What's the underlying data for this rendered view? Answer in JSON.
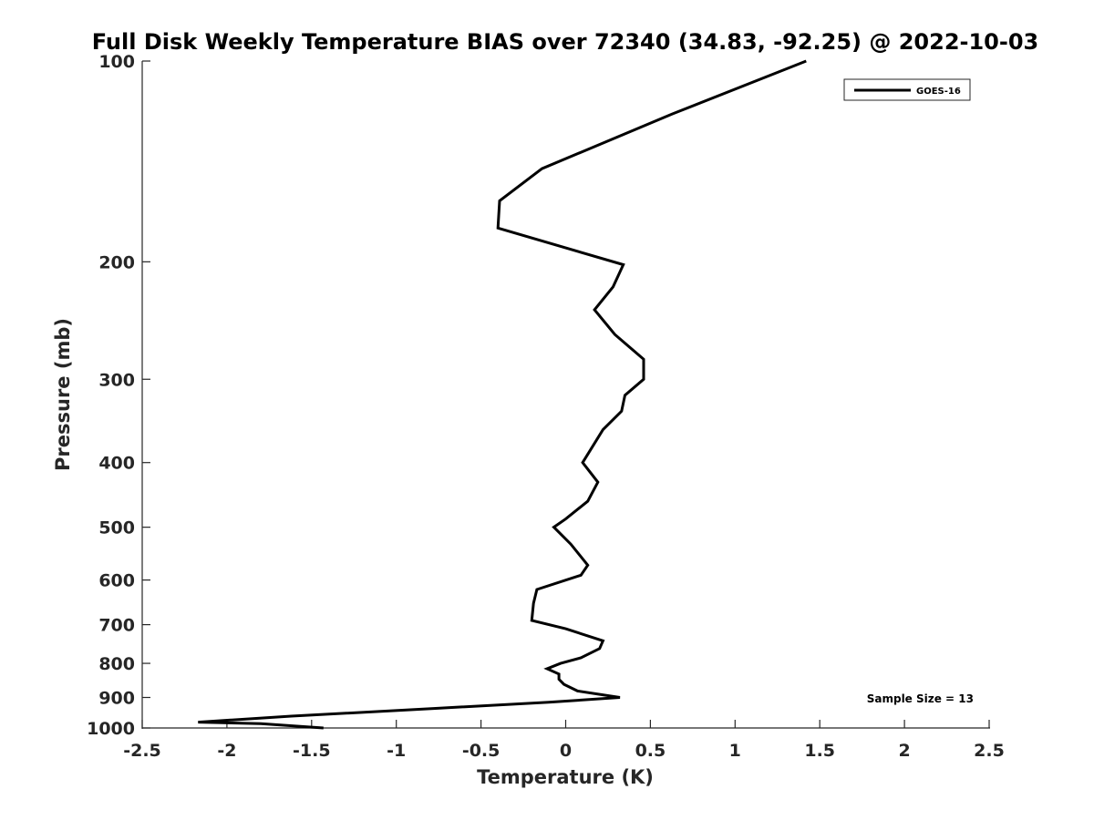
{
  "chart_data": {
    "type": "line",
    "title": "Full Disk Weekly Temperature BIAS over 72340 (34.83, -92.25) @ 2022-10-03",
    "xlabel": "Temperature (K)",
    "ylabel": "Pressure (mb)",
    "xlim": [
      -2.5,
      2.5
    ],
    "ylim": [
      100,
      1000
    ],
    "y_scale": "log",
    "y_reversed": true,
    "x_ticks": [
      "-2.5",
      "-2",
      "-1.5",
      "-1",
      "-0.5",
      "0",
      "0.5",
      "1",
      "1.5",
      "2",
      "2.5"
    ],
    "y_ticks": [
      "100",
      "200",
      "300",
      "400",
      "500",
      "600",
      "700",
      "800",
      "900",
      "1000"
    ],
    "grid": false,
    "legend_position": "top-right",
    "colors": {
      "line": "#000000",
      "axis": "#262626"
    },
    "series": [
      {
        "name": "GOES-16",
        "x": [
          1.42,
          0.63,
          -0.14,
          -0.39,
          -0.4,
          0.34,
          0.28,
          0.17,
          0.29,
          0.46,
          0.46,
          0.35,
          0.33,
          0.22,
          0.1,
          0.19,
          0.13,
          0.0,
          -0.07,
          0.03,
          0.13,
          0.09,
          -0.17,
          -0.19,
          -0.2,
          0.0,
          0.22,
          0.2,
          0.09,
          -0.03,
          -0.11,
          -0.04,
          -0.04,
          -0.01,
          0.07,
          0.32,
          -0.1,
          -0.78,
          -1.62,
          -2.17,
          -1.8,
          -1.43
        ],
        "y": [
          100,
          120,
          145,
          162,
          178,
          202,
          218,
          236,
          257,
          280,
          300,
          317,
          335,
          357,
          400,
          428,
          457,
          486,
          500,
          530,
          570,
          590,
          620,
          650,
          690,
          710,
          740,
          760,
          785,
          800,
          815,
          830,
          845,
          860,
          880,
          900,
          915,
          935,
          960,
          980,
          985,
          1000
        ]
      }
    ]
  },
  "annotation": "Sample Size = 13"
}
